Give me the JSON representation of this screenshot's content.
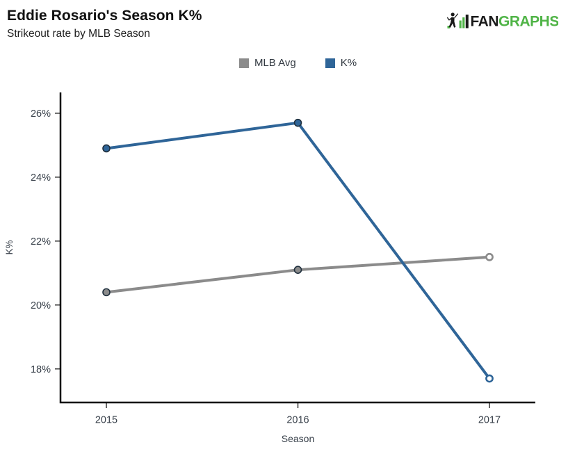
{
  "page": {
    "background": "#FFFFFF"
  },
  "header": {
    "title": "Eddie Rosario's Season K%",
    "subtitle": "Strikeout rate by MLB Season"
  },
  "logo": {
    "text_black": "FAN",
    "text_green": "GRAPHS",
    "green": "#50B447",
    "black": "#1A1A1A"
  },
  "legend": {
    "items": [
      {
        "label": "MLB Avg",
        "color": "#8B8B8B"
      },
      {
        "label": "K%",
        "color": "#2F6598"
      }
    ]
  },
  "chart_data": {
    "type": "line",
    "title": "Eddie Rosario's Season K%",
    "subtitle": "Strikeout rate by MLB Season",
    "categories": [
      "2015",
      "2016",
      "2017"
    ],
    "series": [
      {
        "name": "MLB Avg",
        "color": "#8B8B8B",
        "values": [
          20.4,
          21.1,
          21.5
        ],
        "marker_filled": [
          true,
          true,
          false
        ]
      },
      {
        "name": "K%",
        "color": "#2F6598",
        "values": [
          24.9,
          25.7,
          17.7
        ],
        "marker_filled": [
          true,
          true,
          false
        ]
      }
    ],
    "xlabel": "Season",
    "ylabel": "K%",
    "ylim": [
      16.95,
      26.65
    ],
    "yticks": [
      18,
      20,
      22,
      24,
      26
    ],
    "ytick_suffix": "%",
    "xtick_color": "#38404A",
    "tick_label_color": "#38404A",
    "axis_color": "#000000",
    "marker_stroke": "#20303E",
    "grid": false,
    "legend_position": "top-center"
  }
}
